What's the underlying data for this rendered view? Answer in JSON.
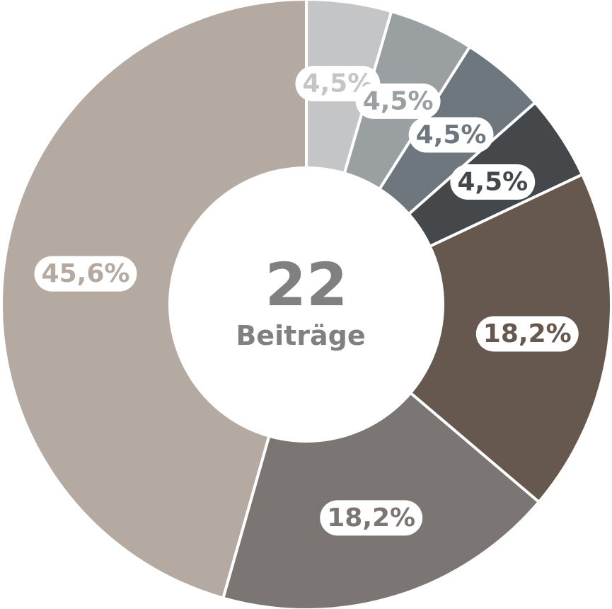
{
  "chart_data": {
    "type": "donut",
    "center_value": 22,
    "center_label": "Beiträge",
    "values": [
      4.5,
      4.5,
      4.5,
      4.5,
      18.2,
      18.2,
      45.6
    ],
    "value_labels": [
      "4,5%",
      "4,5%",
      "4,5%",
      "4,5%",
      "18,2%",
      "18,2%",
      "45,6%"
    ],
    "colors": [
      "#c4c5c7",
      "#9a9fa1",
      "#6f777e",
      "#44484b",
      "#66574f",
      "#7b7674",
      "#b4aaa2"
    ]
  }
}
